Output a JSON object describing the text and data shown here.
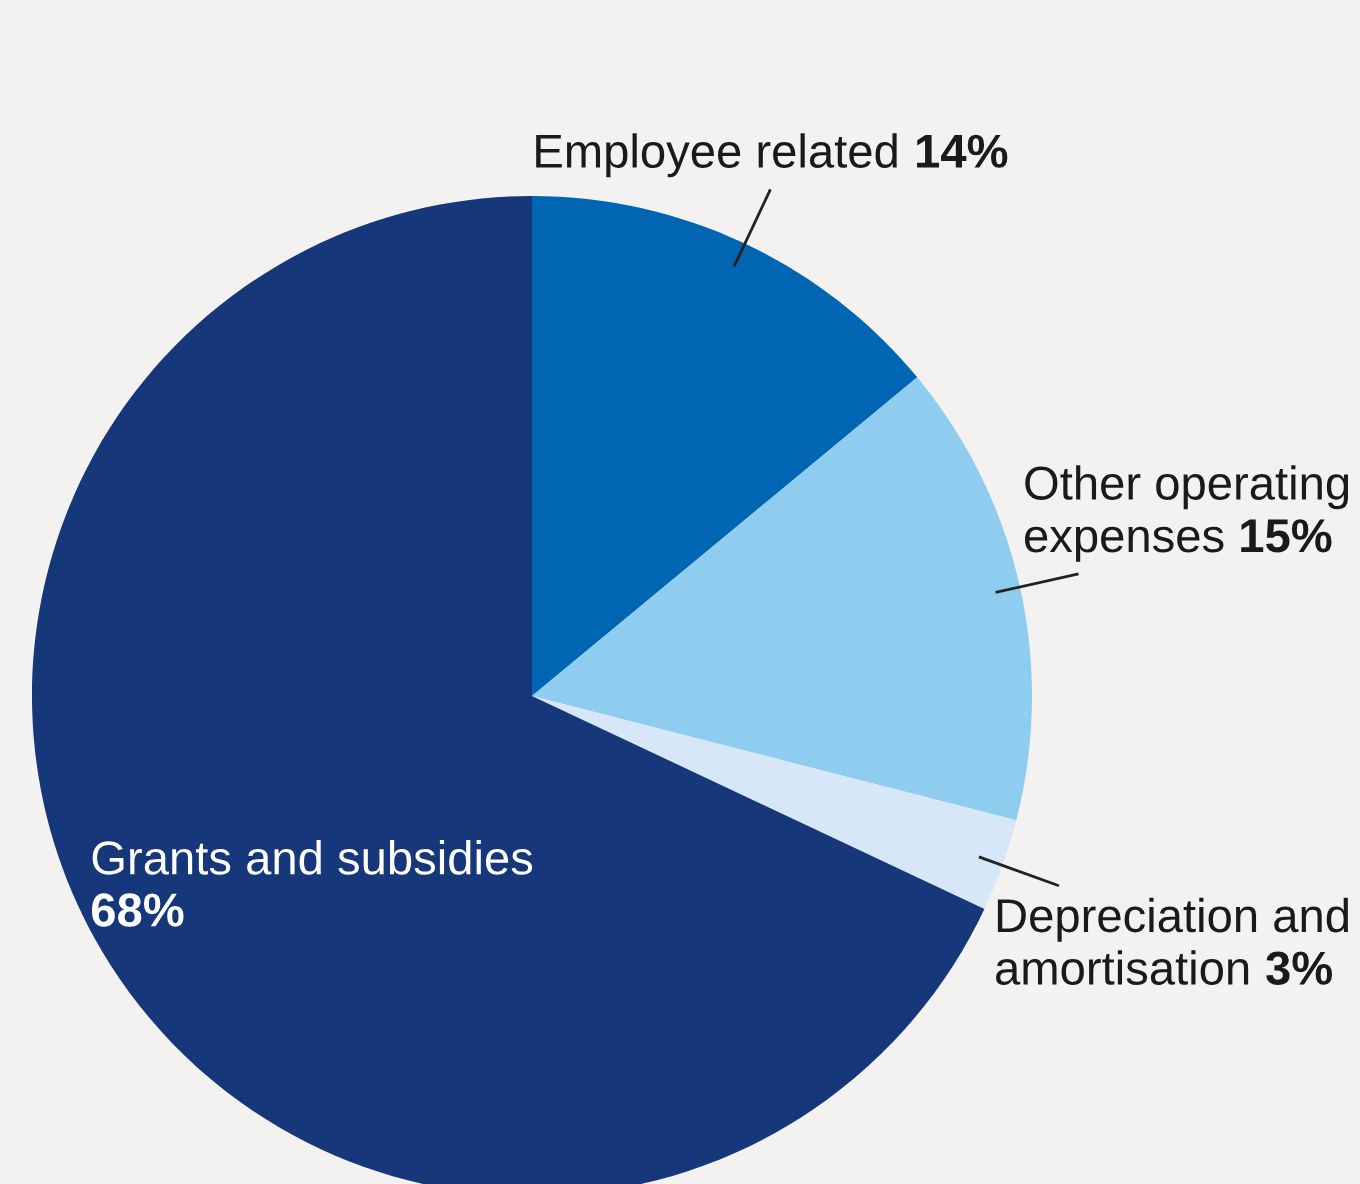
{
  "chart_data": {
    "type": "pie",
    "categories": [
      "Employee related",
      "Other operating\nexpenses",
      "Depreciation and\namortisation",
      "Grants and subsidies"
    ],
    "values": [
      14,
      15,
      3,
      68
    ],
    "value_labels": [
      "14%",
      "15%",
      "3%",
      "68%"
    ],
    "colors": [
      "#0066b3",
      "#8fcdf0",
      "#d6e8f8",
      "#16377a"
    ]
  }
}
